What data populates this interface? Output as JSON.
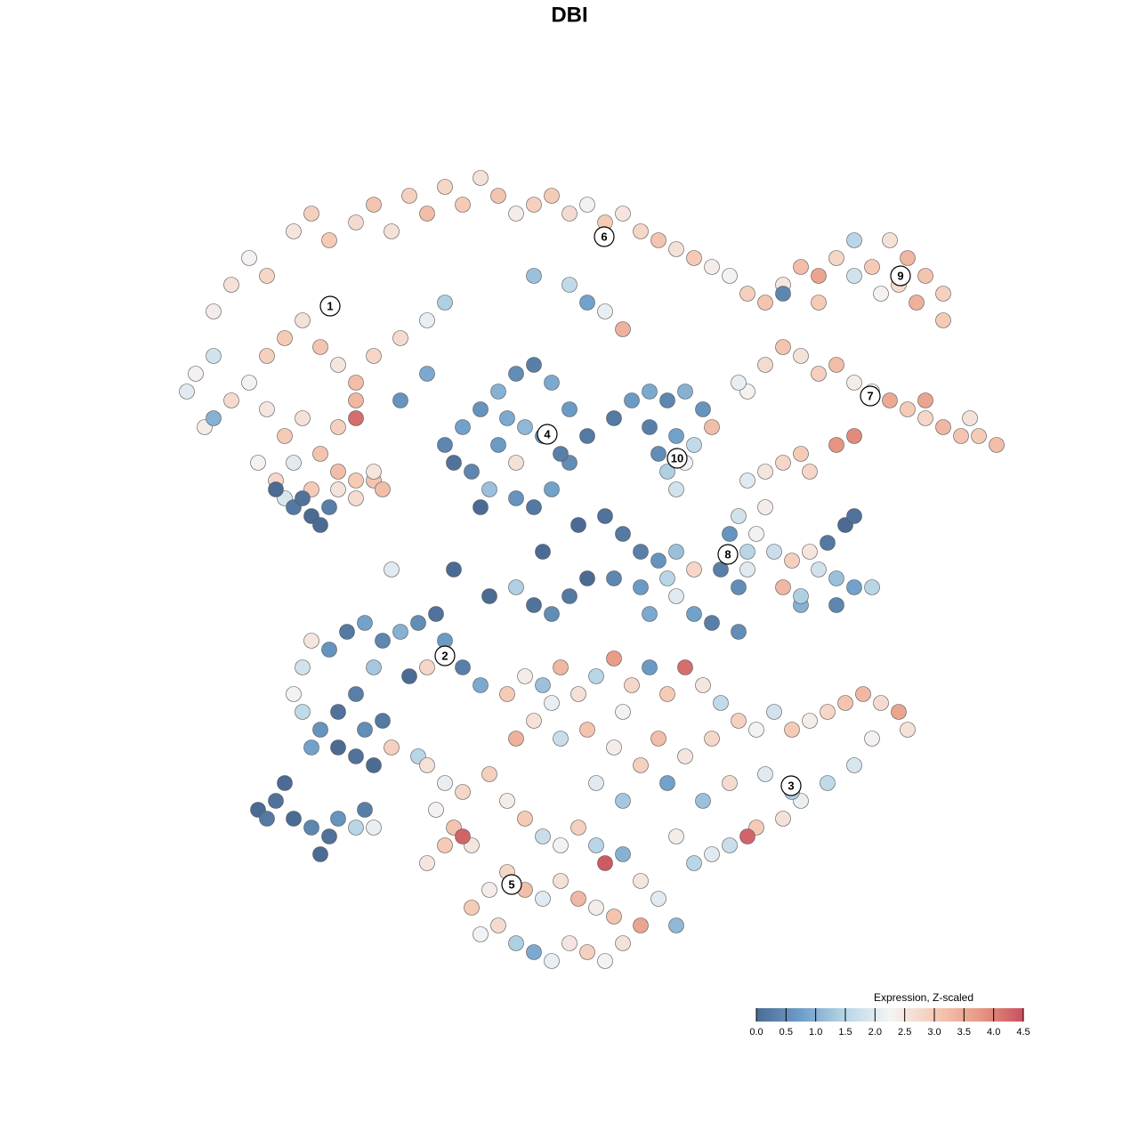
{
  "chart_data": {
    "type": "scatter",
    "title": "DBI",
    "xlim": [
      20,
      113
    ],
    "ylim": [
      18,
      110
    ],
    "clim": [
      0,
      4.5
    ],
    "colormap": [
      "#4b6b94",
      "#6d9ec9",
      "#b9d6e7",
      "#f4f4f4",
      "#f5cbb6",
      "#e89a85",
      "#c9505e"
    ],
    "x": [
      24,
      26,
      28,
      30,
      33,
      35,
      37,
      40,
      42,
      44,
      46,
      48,
      50,
      52,
      54,
      56,
      58,
      60,
      62,
      64,
      66,
      68,
      70,
      72,
      74,
      76,
      78,
      80,
      82,
      84,
      86,
      60,
      64,
      66,
      70,
      68,
      22,
      24,
      21,
      23,
      26,
      28,
      30,
      32,
      34,
      36,
      38,
      40,
      42,
      45,
      48,
      50,
      30,
      32,
      34,
      36,
      38,
      40,
      40,
      29,
      31,
      33,
      35,
      38,
      40,
      42,
      38,
      40,
      42,
      43,
      32,
      31,
      33,
      35,
      37,
      34,
      36,
      24,
      45,
      48,
      50,
      52,
      54,
      56,
      58,
      60,
      62,
      64,
      66,
      64,
      62,
      60,
      58,
      55,
      53,
      51,
      56,
      59,
      61,
      57,
      58,
      54,
      63,
      69,
      71,
      73,
      75,
      77,
      79,
      76,
      78,
      77,
      75,
      76,
      74,
      80,
      73,
      88,
      90,
      92,
      94,
      96,
      98,
      100,
      102,
      104,
      106,
      103,
      101,
      99,
      92,
      88,
      96,
      106,
      86,
      88,
      90,
      92,
      94,
      96,
      98,
      100,
      102,
      104,
      106,
      108,
      110,
      112,
      109,
      104,
      96,
      94,
      90,
      88,
      86,
      84,
      91,
      84,
      83,
      83,
      85,
      84,
      82,
      86,
      84,
      87,
      89,
      91,
      93,
      95,
      96,
      92,
      94,
      96,
      98,
      94,
      90,
      88,
      90,
      81,
      83,
      65,
      68,
      70,
      72,
      74,
      76,
      78,
      75,
      72,
      69,
      66,
      64,
      62,
      60,
      58,
      55,
      51,
      44,
      61,
      73,
      76,
      78,
      80,
      83,
      34,
      35,
      37,
      39,
      41,
      43,
      45,
      47,
      49,
      50,
      52,
      54,
      48,
      46,
      42,
      40,
      38,
      36,
      34,
      33,
      38,
      41,
      43,
      40,
      44,
      47,
      35,
      42,
      57,
      59,
      61,
      63,
      65,
      67,
      69,
      71,
      73,
      75,
      77,
      79,
      81,
      83,
      85,
      87,
      89,
      91,
      93,
      95,
      97,
      99,
      101,
      102,
      98,
      96,
      93,
      90,
      88,
      85,
      84,
      82,
      80,
      78,
      76,
      79,
      82,
      86,
      89,
      75,
      72,
      69,
      66,
      63,
      60,
      58,
      62,
      70,
      74,
      77,
      80,
      67,
      70,
      48,
      50,
      49,
      51,
      53,
      52,
      55,
      57,
      59,
      61,
      63,
      65,
      67,
      68,
      70,
      72,
      74,
      72,
      70,
      68,
      66,
      64,
      62,
      60,
      58,
      56,
      54,
      53,
      55,
      57,
      59,
      61,
      63,
      65,
      67,
      69,
      52,
      50,
      48,
      76,
      29,
      31,
      30,
      33,
      35,
      37,
      36,
      38,
      40,
      41,
      42,
      32
    ],
    "y": [
      93,
      96,
      99,
      97,
      102,
      104,
      101,
      103,
      105,
      102,
      106,
      104,
      107,
      105,
      108,
      106,
      104,
      105,
      106,
      104,
      105,
      103,
      104,
      102,
      101,
      100,
      99,
      98,
      97,
      95,
      94,
      97,
      96,
      94,
      91,
      93,
      86,
      88,
      84,
      80,
      83,
      85,
      88,
      90,
      92,
      89,
      87,
      85,
      88,
      90,
      92,
      94,
      82,
      79,
      81,
      77,
      80,
      83,
      81,
      76,
      74,
      76,
      73,
      75,
      72,
      74,
      73,
      74,
      75,
      73,
      72,
      73,
      71,
      70,
      71,
      72,
      69,
      81,
      83,
      86,
      78,
      80,
      82,
      84,
      86,
      87,
      85,
      82,
      79,
      76,
      73,
      71,
      72,
      73,
      75,
      76,
      78,
      80,
      79,
      81,
      76,
      71,
      77,
      81,
      83,
      84,
      83,
      84,
      82,
      79,
      78,
      76,
      75,
      73,
      77,
      80,
      80,
      96,
      98,
      97,
      99,
      97,
      98,
      101,
      99,
      97,
      95,
      94,
      96,
      95,
      94,
      95,
      101,
      92,
      87,
      89,
      88,
      86,
      87,
      85,
      84,
      83,
      82,
      81,
      80,
      79,
      79,
      78,
      81,
      83,
      79,
      78,
      77,
      76,
      75,
      74,
      75,
      84,
      85,
      70,
      68,
      66,
      68,
      71,
      64,
      66,
      65,
      66,
      67,
      69,
      70,
      64,
      63,
      62,
      62,
      60,
      60,
      62,
      61,
      64,
      62,
      69,
      70,
      68,
      66,
      65,
      66,
      64,
      63,
      62,
      63,
      63,
      61,
      59,
      60,
      62,
      61,
      64,
      64,
      66,
      59,
      61,
      59,
      58,
      57,
      53,
      56,
      55,
      57,
      58,
      56,
      57,
      58,
      59,
      56,
      53,
      51,
      53,
      52,
      53,
      50,
      48,
      46,
      48,
      50,
      44,
      46,
      47,
      43,
      44,
      43,
      44,
      42,
      50,
      52,
      51,
      53,
      50,
      52,
      54,
      51,
      53,
      50,
      53,
      51,
      49,
      47,
      46,
      48,
      46,
      47,
      48,
      49,
      50,
      49,
      48,
      46,
      45,
      42,
      40,
      38,
      36,
      35,
      34,
      33,
      32,
      31,
      34,
      38,
      40,
      41,
      39,
      40,
      42,
      44,
      46,
      45,
      47,
      45,
      49,
      48,
      45,
      43,
      45,
      40,
      38,
      42,
      40,
      37,
      35,
      33,
      39,
      41,
      38,
      36,
      34,
      33,
      35,
      33,
      31,
      32,
      29,
      27,
      24,
      22,
      20,
      21,
      22,
      20,
      21,
      22,
      24,
      23,
      26,
      28,
      30,
      28,
      27,
      29,
      27,
      26,
      25,
      34,
      33,
      31,
      24,
      37,
      38,
      36,
      36,
      35,
      34,
      32,
      36,
      35,
      37,
      35,
      40
    ],
    "values": [
      2.4,
      2.6,
      2.3,
      2.8,
      2.5,
      2.9,
      3.0,
      2.7,
      3.1,
      2.6,
      2.9,
      3.2,
      2.8,
      3.0,
      2.6,
      3.1,
      2.4,
      2.9,
      3.0,
      2.7,
      2.2,
      3.0,
      2.5,
      2.8,
      3.1,
      2.6,
      3.0,
      2.4,
      2.2,
      2.9,
      3.1,
      1.2,
      1.6,
      0.8,
      3.4,
      2.1,
      2.3,
      1.8,
      2.0,
      2.4,
      2.7,
      2.2,
      2.9,
      3.0,
      2.6,
      3.1,
      2.5,
      3.2,
      2.8,
      2.7,
      2.1,
      1.4,
      2.5,
      3.0,
      2.6,
      3.1,
      2.9,
      3.3,
      4.2,
      2.3,
      2.8,
      2.0,
      3.0,
      3.2,
      2.7,
      3.1,
      2.6,
      3.0,
      2.5,
      3.2,
      1.9,
      0.0,
      0.2,
      0.0,
      0.3,
      0.1,
      0.0,
      1.0,
      0.6,
      0.9,
      0.4,
      0.8,
      0.6,
      1.0,
      0.5,
      0.3,
      0.9,
      0.7,
      0.2,
      0.5,
      0.8,
      0.2,
      0.6,
      1.2,
      0.4,
      0.1,
      0.7,
      1.1,
      0.6,
      0.9,
      2.6,
      0.0,
      0.3,
      0.2,
      0.7,
      0.9,
      0.4,
      1.0,
      0.6,
      0.8,
      1.6,
      2.2,
      1.4,
      1.8,
      0.5,
      3.2,
      0.3,
      2.5,
      3.2,
      3.6,
      2.8,
      1.8,
      3.0,
      2.6,
      3.3,
      3.1,
      2.9,
      3.4,
      2.7,
      2.3,
      3.0,
      0.4,
      1.5,
      3.0,
      2.7,
      3.1,
      2.6,
      2.9,
      3.2,
      2.4,
      2.2,
      3.5,
      3.0,
      2.8,
      3.3,
      3.1,
      3.0,
      3.2,
      2.6,
      3.6,
      3.9,
      3.8,
      3.0,
      2.8,
      2.5,
      2.0,
      2.8,
      2.3,
      2.1,
      1.8,
      2.2,
      1.5,
      0.6,
      2.4,
      2.0,
      1.7,
      2.9,
      2.5,
      0.2,
      0.0,
      0.1,
      1.8,
      1.2,
      0.8,
      1.5,
      0.4,
      1.0,
      3.3,
      1.4,
      0.3,
      0.5,
      0.0,
      0.1,
      0.2,
      0.3,
      0.6,
      1.2,
      2.8,
      1.5,
      0.7,
      0.4,
      0.0,
      0.2,
      0.5,
      0.1,
      1.4,
      0.0,
      0.0,
      2.0,
      0.0,
      0.9,
      2.0,
      0.8,
      0.3,
      0.5,
      1.8,
      2.5,
      0.6,
      0.2,
      0.8,
      0.4,
      1.0,
      0.5,
      0.1,
      0.7,
      0.3,
      0.9,
      2.8,
      0.0,
      1.3,
      0.3,
      0.1,
      0.6,
      1.6,
      2.2,
      0.0,
      0.5,
      0.2,
      0.1,
      2.9,
      1.5,
      0.8,
      0.0,
      3.0,
      2.4,
      1.2,
      3.3,
      2.6,
      1.5,
      3.7,
      2.8,
      0.7,
      3.0,
      4.2,
      2.5,
      1.6,
      2.9,
      2.2,
      1.8,
      3.0,
      2.4,
      2.8,
      3.1,
      3.3,
      2.7,
      3.6,
      2.6,
      2.3,
      1.9,
      1.6,
      2.1,
      2.6,
      3.0,
      4.3,
      1.7,
      2.0,
      1.5,
      2.4,
      1.2,
      2.7,
      2.0,
      1.4,
      0.8,
      2.9,
      2.4,
      3.1,
      1.7,
      2.6,
      3.4,
      2.1,
      2.2,
      3.2,
      2.5,
      2.8,
      2.0,
      1.3,
      2.6,
      2.1,
      2.3,
      3.1,
      2.5,
      2.8,
      2.9,
      2.4,
      3.0,
      1.7,
      2.2,
      2.9,
      1.5,
      4.4,
      1.0,
      2.5,
      2.0,
      3.6,
      2.6,
      2.3,
      2.9,
      2.5,
      2.1,
      0.9,
      1.4,
      2.7,
      2.2,
      3.0,
      2.4,
      2.8,
      3.2,
      2.0,
      2.6,
      3.3,
      2.4,
      3.1,
      4.3,
      3.0,
      2.5,
      1.1,
      0.0,
      0.1,
      0.2,
      0.0,
      0.4,
      0.1,
      0.0,
      0.6,
      1.5,
      0.3,
      2.1,
      0.0
    ],
    "cluster_labels": [
      {
        "label": "1",
        "x": 37.1,
        "y": 93.6
      },
      {
        "label": "2",
        "x": 50,
        "y": 54.3
      },
      {
        "label": "3",
        "x": 88.9,
        "y": 39.7
      },
      {
        "label": "4",
        "x": 61.5,
        "y": 79.2
      },
      {
        "label": "5",
        "x": 57.5,
        "y": 28.6
      },
      {
        "label": "6",
        "x": 67.9,
        "y": 101.4
      },
      {
        "label": "7",
        "x": 97.8,
        "y": 83.5
      },
      {
        "label": "8",
        "x": 81.8,
        "y": 65.7
      },
      {
        "label": "9",
        "x": 101.2,
        "y": 97
      },
      {
        "label": "10",
        "x": 76.1,
        "y": 76.5
      }
    ],
    "colorbar": {
      "title": "Expression, Z-scaled",
      "ticks": [
        {
          "value": 0,
          "label": "0.0"
        },
        0.5,
        {
          "value": 1,
          "label": "1.0"
        },
        1.5,
        {
          "value": 2,
          "label": "2.0"
        },
        2.5,
        {
          "value": 3,
          "label": "3.0"
        },
        3.5,
        {
          "value": 4,
          "label": "4.0"
        },
        4.5
      ]
    }
  }
}
